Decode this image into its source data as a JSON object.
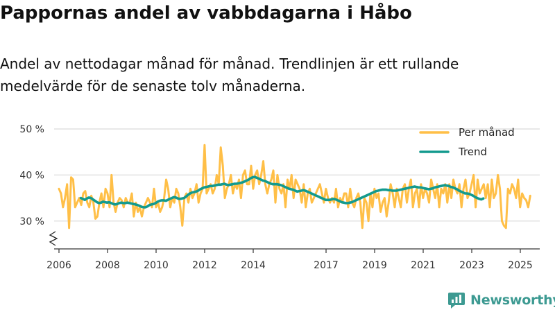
{
  "title": "Pappornas andel av vabbdagarna i Håbo",
  "subtitle": "Andel av nettodagar månad för månad. Trendlinjen är ett rullande medelvärde för de senaste tolv månaderna.",
  "brand": {
    "name": "Newsworthy"
  },
  "colors": {
    "monthly": "#ffbf47",
    "trend": "#139a8e",
    "grid": "#d9d9d9",
    "axis": "#333333",
    "brand": "#3d9a92"
  },
  "chart_data": {
    "type": "line",
    "title": "Pappornas andel av vabbdagarna i Håbo",
    "xlabel": "",
    "ylabel": "",
    "ylim": [
      25,
      50
    ],
    "y_ticks": [
      30,
      40,
      50
    ],
    "y_tick_labels": [
      "30 %",
      "40 %",
      "50 %"
    ],
    "y_axis_break": true,
    "x_range": [
      2005.8,
      2025.8
    ],
    "x_ticks": [
      2006,
      2008,
      2010,
      2012,
      2014,
      2017,
      2019,
      2021,
      2023,
      2025
    ],
    "x_tick_labels": [
      "2006",
      "2008",
      "2010",
      "2012",
      "2014",
      "2017",
      "2019",
      "2021",
      "2023",
      "2025"
    ],
    "legend": {
      "position": "top-right",
      "entries": [
        "Per månad",
        "Trend"
      ]
    },
    "series": [
      {
        "name": "Per månad",
        "start": 2006.0,
        "step": 0.0833,
        "values": [
          37,
          36,
          33,
          35,
          38,
          28.5,
          39.5,
          39,
          33,
          34,
          35,
          33.5,
          36,
          36.5,
          34,
          33,
          35.5,
          34,
          30.5,
          31,
          34,
          36,
          33,
          37,
          36,
          33,
          40,
          34,
          32,
          34,
          35,
          34.5,
          33,
          35,
          34,
          34,
          36,
          31,
          34,
          32,
          33,
          31,
          33,
          34,
          35,
          34,
          33,
          37,
          33,
          34,
          32,
          33,
          35,
          39,
          37,
          33,
          35,
          34,
          37,
          36,
          33,
          29,
          35,
          36,
          34,
          37,
          35,
          36,
          38,
          34,
          36,
          37,
          46.5,
          36,
          37,
          38,
          36,
          37,
          40,
          38,
          46,
          42,
          35,
          37,
          38,
          40,
          36,
          38,
          37,
          39,
          35,
          40,
          41,
          38,
          38,
          42,
          37,
          40,
          41,
          38,
          40,
          43,
          38,
          36,
          38,
          39,
          41,
          34,
          40,
          37,
          36,
          38,
          33,
          39,
          37,
          40,
          35,
          39,
          38,
          37,
          34,
          38,
          33,
          36,
          37,
          34,
          35,
          36,
          37,
          38,
          36,
          34,
          37,
          35,
          34,
          35,
          34,
          37,
          33,
          35,
          34,
          36,
          36,
          33,
          37,
          34,
          33,
          35,
          36,
          34,
          28.5,
          35,
          34,
          30,
          36,
          33,
          37,
          35,
          36,
          32,
          34,
          35,
          31,
          34,
          38,
          36,
          33,
          37,
          35,
          33,
          37,
          38,
          34,
          37,
          39,
          33,
          36,
          37,
          33,
          38,
          35,
          37,
          36,
          34,
          39,
          37,
          35,
          38,
          33,
          37,
          36,
          38,
          34,
          38,
          35,
          39,
          37,
          36,
          38,
          33,
          37,
          39,
          35,
          36,
          38,
          40,
          33,
          39,
          36,
          37,
          38,
          35,
          38,
          33,
          39,
          35,
          36,
          40,
          37,
          30,
          29,
          28.5,
          37,
          36,
          38,
          37,
          35,
          39,
          33,
          36,
          35,
          34.5,
          33,
          35.5
        ]
      },
      {
        "name": "Trend",
        "start": 2006.9,
        "step": 0.0833,
        "values": [
          35,
          34.8,
          34.6,
          34.9,
          35.1,
          35.0,
          34.7,
          34.4,
          34.1,
          33.9,
          34.0,
          34.2,
          34.1,
          34.0,
          34.1,
          33.9,
          33.7,
          33.6,
          33.7,
          33.9,
          34.0,
          33.9,
          33.9,
          34.0,
          33.9,
          33.8,
          33.7,
          33.6,
          33.5,
          33.3,
          33.1,
          33.0,
          33.0,
          33.2,
          33.5,
          33.6,
          33.7,
          33.9,
          34.2,
          34.4,
          34.5,
          34.5,
          34.4,
          34.6,
          34.8,
          35.0,
          35.2,
          35.1,
          34.9,
          34.8,
          34.9,
          35.0,
          35.3,
          35.7,
          36.0,
          36.2,
          36.3,
          36.4,
          36.6,
          36.9,
          37.1,
          37.3,
          37.4,
          37.5,
          37.6,
          37.6,
          37.7,
          37.8,
          37.9,
          37.9,
          38.0,
          38.1,
          37.9,
          37.8,
          37.9,
          38.0,
          38.1,
          38.1,
          38.2,
          38.3,
          38.4,
          38.6,
          38.8,
          39.0,
          39.3,
          39.5,
          39.6,
          39.4,
          39.2,
          39.0,
          38.8,
          38.7,
          38.5,
          38.3,
          38.1,
          38.0,
          38.0,
          38.0,
          37.9,
          37.8,
          37.6,
          37.4,
          37.2,
          37.0,
          36.9,
          36.8,
          36.6,
          36.4,
          36.5,
          36.6,
          36.7,
          36.6,
          36.4,
          36.2,
          36.0,
          35.8,
          35.6,
          35.4,
          35.2,
          35.0,
          34.8,
          34.6,
          34.6,
          34.6,
          34.7,
          34.8,
          34.7,
          34.5,
          34.3,
          34.1,
          34.0,
          33.9,
          33.9,
          34.0,
          34.1,
          34.3,
          34.5,
          34.7,
          34.9,
          35.1,
          35.3,
          35.5,
          35.7,
          35.9,
          36.1,
          36.3,
          36.5,
          36.6,
          36.7,
          36.8,
          36.8,
          36.8,
          36.7,
          36.7,
          36.6,
          36.6,
          36.6,
          36.7,
          36.8,
          36.9,
          37.0,
          37.1,
          37.2,
          37.3,
          37.4,
          37.5,
          37.4,
          37.3,
          37.3,
          37.2,
          37.1,
          37.0,
          36.9,
          37.0,
          37.1,
          37.3,
          37.4,
          37.5,
          37.6,
          37.7,
          37.8,
          37.7,
          37.6,
          37.4,
          37.3,
          37.1,
          36.9,
          36.6,
          36.4,
          36.2,
          36.0,
          36.0,
          35.9,
          35.7,
          35.5,
          35.2,
          35.0,
          34.8,
          34.7,
          34.9
        ]
      }
    ]
  }
}
